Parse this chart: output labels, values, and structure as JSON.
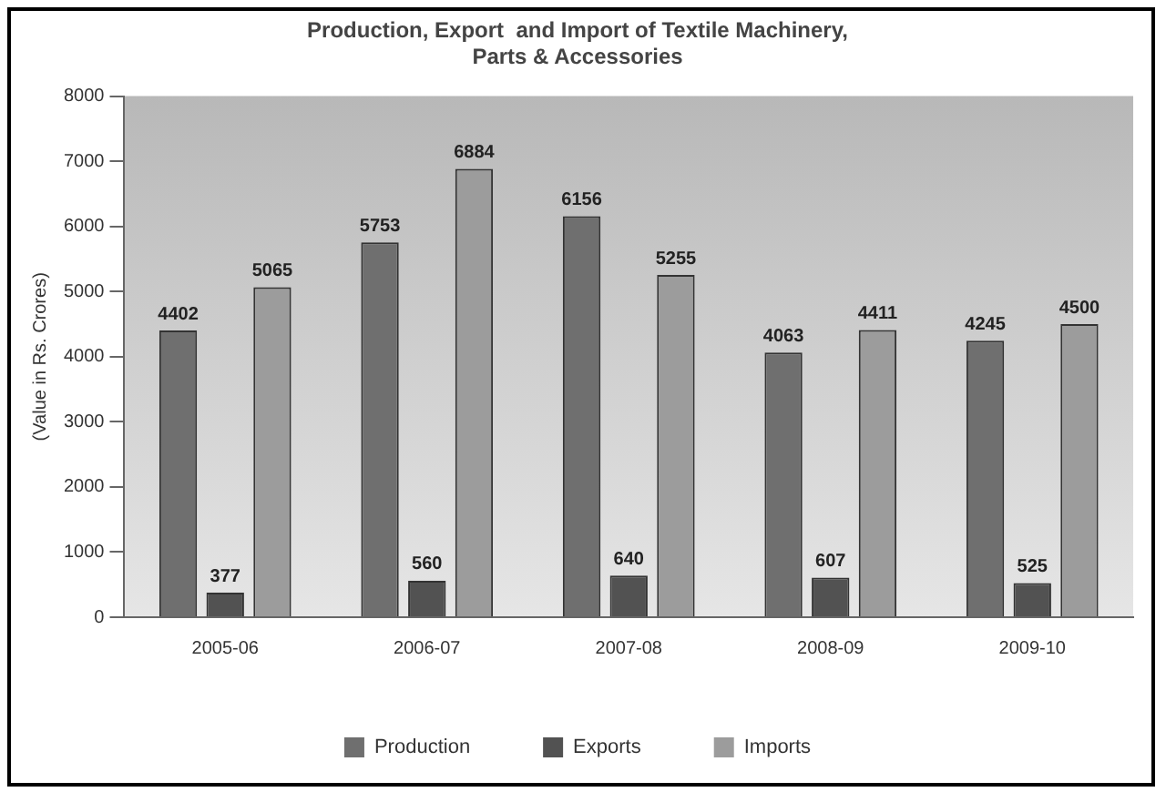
{
  "chart_data": {
    "type": "bar",
    "title": [
      "Production, Export  and Import of Textile Machinery,",
      "Parts & Accessories"
    ],
    "ylabel": "(Value in Rs. Crores)",
    "categories": [
      "2005-06",
      "2006-07",
      "2007-08",
      "2008-09",
      "2009-10"
    ],
    "series": [
      {
        "name": "Production",
        "color": "#6f6f6f",
        "values": [
          4402,
          5753,
          6156,
          4063,
          4245
        ]
      },
      {
        "name": "Exports",
        "color": "#525252",
        "values": [
          377,
          560,
          640,
          607,
          525
        ]
      },
      {
        "name": "Imports",
        "color": "#9c9c9c",
        "values": [
          5065,
          6884,
          5255,
          4411,
          4500
        ]
      }
    ],
    "ylim": [
      0,
      8000
    ],
    "yticks": [
      0,
      1000,
      2000,
      3000,
      4000,
      5000,
      6000,
      7000,
      8000
    ],
    "grid": false,
    "legend": "bottom",
    "data_labels": true
  }
}
